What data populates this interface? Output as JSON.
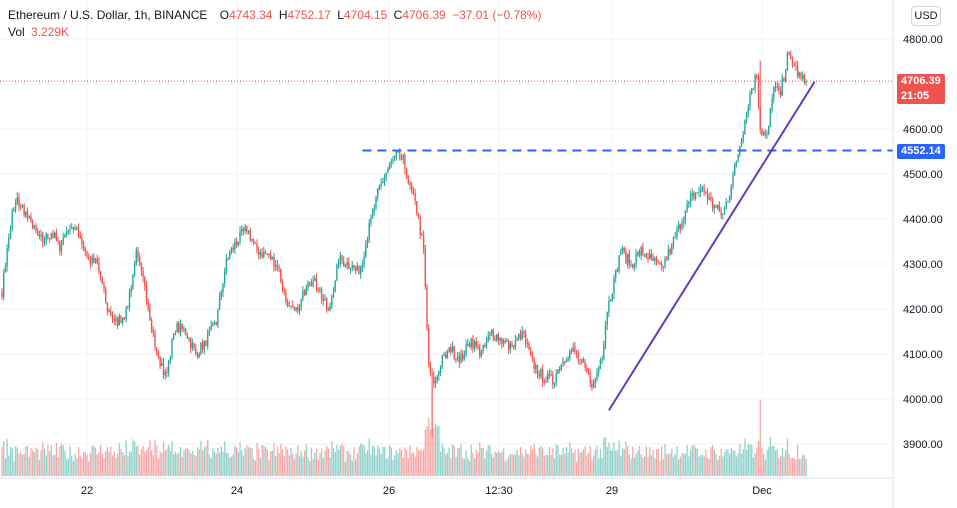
{
  "header": {
    "symbol": "Ethereum / U.S. Dollar, 1h, BINANCE",
    "o_label": "O",
    "o_value": "4743.34",
    "h_label": "H",
    "h_value": "4752.17",
    "l_label": "L",
    "l_value": "4704.15",
    "c_label": "C",
    "c_value": "4706.39",
    "change": "−37.01 (−0.78%)",
    "vol_label": "Vol",
    "vol_value": "3.229K"
  },
  "currency_button": "USD",
  "price_labels": {
    "last_price": "4706.39",
    "countdown": "21:05",
    "level_price": "4552.14"
  },
  "colors": {
    "up": "#26a69a",
    "down": "#ef5350",
    "level_line": "#2962ff",
    "trend_line": "#673ab7",
    "last_price_line": "#ef5350"
  },
  "chart_data": {
    "type": "candlestick",
    "title": "Ethereum / U.S. Dollar, 1h, BINANCE",
    "y_ticks": [
      "4800.00",
      "4700.00",
      "4600.00",
      "4500.00",
      "4400.00",
      "4300.00",
      "4200.00",
      "4100.00",
      "4000.00",
      "3900.00"
    ],
    "x_ticks": [
      "22",
      "24",
      "26",
      "12:30",
      "29",
      "Dec"
    ],
    "ylim": [
      3855,
      4890
    ],
    "close_anchors": [
      [
        0,
        4240
      ],
      [
        3,
        4330
      ],
      [
        6,
        4410
      ],
      [
        9,
        4440
      ],
      [
        13,
        4420
      ],
      [
        18,
        4380
      ],
      [
        24,
        4350
      ],
      [
        29,
        4370
      ],
      [
        34,
        4340
      ],
      [
        40,
        4390
      ],
      [
        46,
        4360
      ],
      [
        51,
        4310
      ],
      [
        56,
        4300
      ],
      [
        62,
        4200
      ],
      [
        67,
        4170
      ],
      [
        73,
        4190
      ],
      [
        79,
        4320
      ],
      [
        85,
        4230
      ],
      [
        91,
        4100
      ],
      [
        96,
        4050
      ],
      [
        102,
        4160
      ],
      [
        108,
        4150
      ],
      [
        114,
        4100
      ],
      [
        120,
        4130
      ],
      [
        126,
        4170
      ],
      [
        132,
        4310
      ],
      [
        138,
        4350
      ],
      [
        144,
        4380
      ],
      [
        150,
        4330
      ],
      [
        156,
        4320
      ],
      [
        162,
        4300
      ],
      [
        168,
        4200
      ],
      [
        174,
        4190
      ],
      [
        180,
        4270
      ],
      [
        186,
        4250
      ],
      [
        192,
        4190
      ],
      [
        198,
        4310
      ],
      [
        204,
        4300
      ],
      [
        210,
        4280
      ],
      [
        216,
        4380
      ],
      [
        222,
        4470
      ],
      [
        228,
        4520
      ],
      [
        232,
        4540
      ],
      [
        236,
        4530
      ],
      [
        240,
        4470
      ],
      [
        244,
        4420
      ],
      [
        248,
        4330
      ],
      [
        251,
        4070
      ],
      [
        254,
        4030
      ],
      [
        258,
        4080
      ],
      [
        264,
        4110
      ],
      [
        270,
        4090
      ],
      [
        276,
        4130
      ],
      [
        282,
        4100
      ],
      [
        288,
        4150
      ],
      [
        294,
        4130
      ],
      [
        300,
        4110
      ],
      [
        306,
        4150
      ],
      [
        312,
        4080
      ],
      [
        318,
        4050
      ],
      [
        324,
        4040
      ],
      [
        330,
        4090
      ],
      [
        336,
        4110
      ],
      [
        342,
        4070
      ],
      [
        348,
        4030
      ],
      [
        353,
        4100
      ],
      [
        356,
        4200
      ],
      [
        360,
        4260
      ],
      [
        364,
        4330
      ],
      [
        370,
        4300
      ],
      [
        376,
        4330
      ],
      [
        382,
        4310
      ],
      [
        388,
        4290
      ],
      [
        394,
        4340
      ],
      [
        400,
        4400
      ],
      [
        406,
        4450
      ],
      [
        412,
        4470
      ],
      [
        418,
        4430
      ],
      [
        424,
        4410
      ],
      [
        428,
        4460
      ],
      [
        432,
        4530
      ],
      [
        436,
        4600
      ],
      [
        440,
        4680
      ],
      [
        444,
        4720
      ],
      [
        446,
        4600
      ],
      [
        450,
        4580
      ],
      [
        454,
        4690
      ],
      [
        458,
        4680
      ],
      [
        462,
        4760
      ],
      [
        466,
        4740
      ],
      [
        470,
        4710
      ],
      [
        473,
        4706
      ]
    ],
    "events": {
      "high_spike_index": 446,
      "high_spike_value": 4752,
      "crash_low_index": 253,
      "crash_low_value": 3915
    },
    "volume": {
      "ylim": [
        0,
        20000
      ]
    },
    "horizontal_level": {
      "value": 4552.14,
      "start_index": 212,
      "style": "dashed"
    },
    "trend_line": {
      "from": [
        357,
        3975
      ],
      "to": [
        478,
        4705
      ]
    },
    "last_price": 4706.39
  }
}
